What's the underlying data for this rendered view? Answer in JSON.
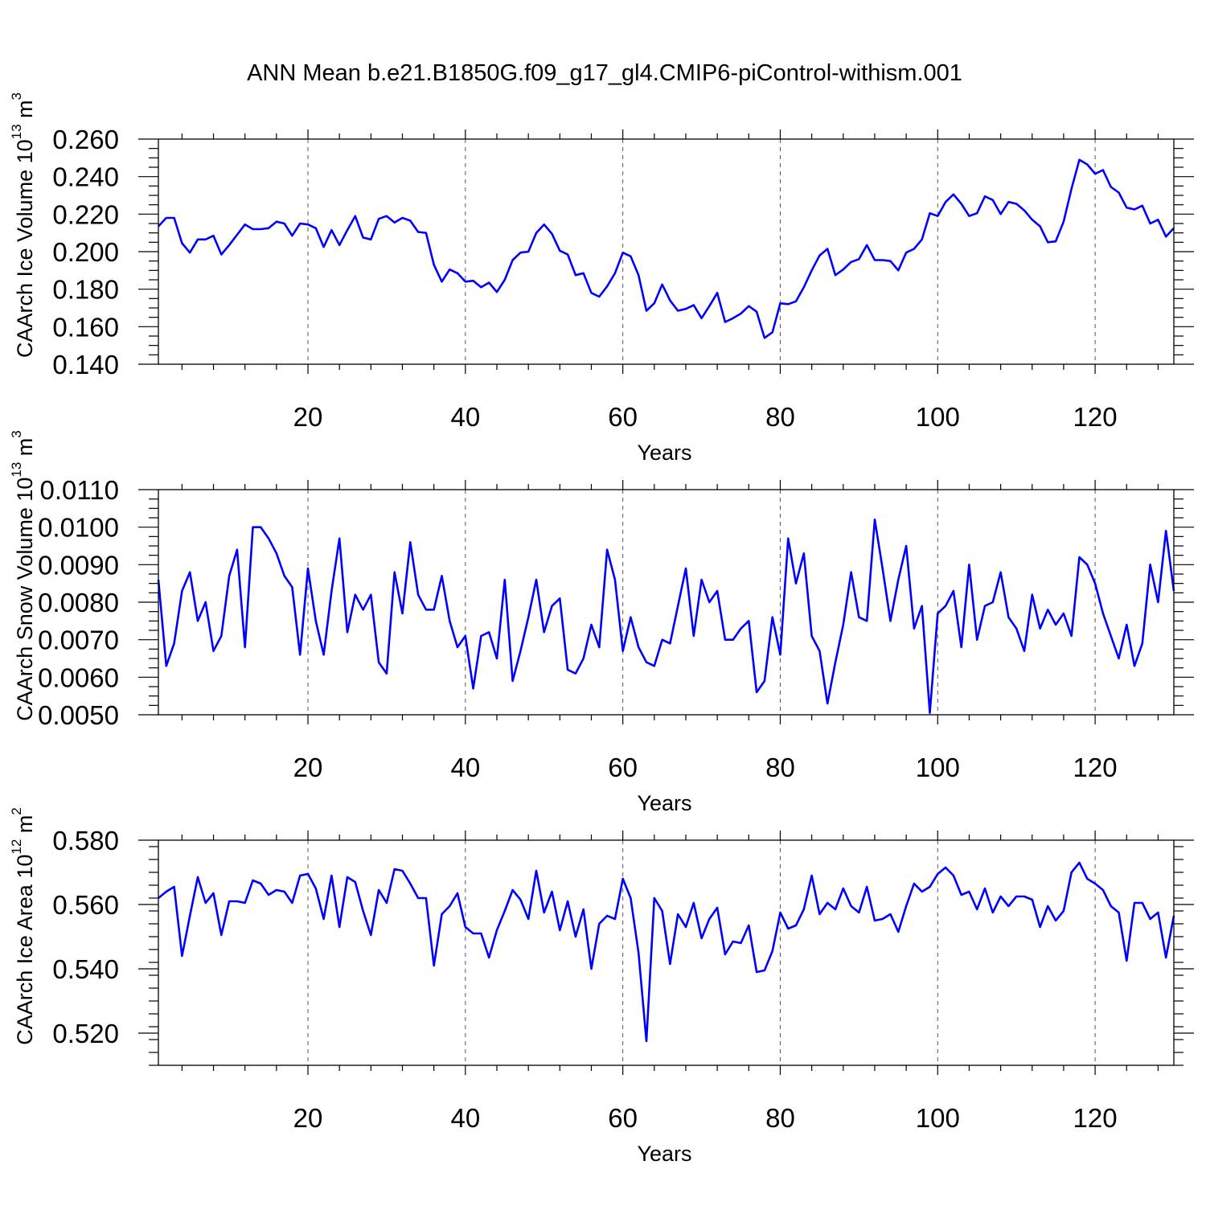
{
  "title": "ANN Mean b.e21.B1850G.f09_g17_gl4.CMIP6-piControl-withism.001",
  "chart_data": [
    {
      "type": "line",
      "xlabel": "Years",
      "ylabel": "CAArch Ice Volume 10",
      "ylabel_exp": "13",
      "ylabel_unit": "m",
      "ylabel_unit_exp": "3",
      "xlim": [
        1,
        130
      ],
      "ylim": [
        0.14,
        0.26
      ],
      "xticks": [
        20,
        40,
        60,
        80,
        100,
        120
      ],
      "yticks": [
        0.14,
        0.16,
        0.18,
        0.2,
        0.22,
        0.24,
        0.26
      ],
      "yticklabels": [
        "0.140",
        "0.160",
        "0.180",
        "0.200",
        "0.220",
        "0.240",
        "0.260"
      ],
      "y_minor_step": 0.005,
      "x_minor_step": 4,
      "grid_x": true,
      "color": "#0000ff",
      "values": [
        0.2135,
        0.218,
        0.218,
        0.2045,
        0.1995,
        0.2065,
        0.2065,
        0.2085,
        0.1985,
        0.2035,
        0.209,
        0.2145,
        0.212,
        0.212,
        0.2125,
        0.216,
        0.215,
        0.2085,
        0.215,
        0.2145,
        0.2125,
        0.2025,
        0.2115,
        0.2035,
        0.2115,
        0.219,
        0.2075,
        0.2065,
        0.2175,
        0.219,
        0.2155,
        0.218,
        0.2165,
        0.2105,
        0.21,
        0.193,
        0.184,
        0.1905,
        0.1885,
        0.184,
        0.1845,
        0.181,
        0.1835,
        0.1785,
        0.185,
        0.1955,
        0.1995,
        0.2,
        0.21,
        0.2145,
        0.2095,
        0.2005,
        0.1985,
        0.1875,
        0.1885,
        0.178,
        0.176,
        0.1815,
        0.1885,
        0.1995,
        0.1975,
        0.1875,
        0.1685,
        0.1725,
        0.1825,
        0.174,
        0.1685,
        0.1695,
        0.1715,
        0.1645,
        0.171,
        0.178,
        0.1625,
        0.1645,
        0.167,
        0.171,
        0.168,
        0.154,
        0.157,
        0.1725,
        0.172,
        0.1735,
        0.181,
        0.19,
        0.198,
        0.2015,
        0.1875,
        0.1905,
        0.1945,
        0.196,
        0.2035,
        0.1955,
        0.1955,
        0.195,
        0.19,
        0.1995,
        0.2015,
        0.2065,
        0.2205,
        0.219,
        0.2265,
        0.2305,
        0.2255,
        0.219,
        0.2205,
        0.2295,
        0.2275,
        0.22,
        0.2265,
        0.2255,
        0.222,
        0.217,
        0.2135,
        0.205,
        0.2055,
        0.216,
        0.2335,
        0.249,
        0.2465,
        0.2415,
        0.2435,
        0.2345,
        0.2315,
        0.2235,
        0.2225,
        0.2245,
        0.215,
        0.217,
        0.208,
        0.2125
      ]
    },
    {
      "type": "line",
      "xlabel": "Years",
      "ylabel": "CAArch Snow Volume 10",
      "ylabel_exp": "13",
      "ylabel_unit": "m",
      "ylabel_unit_exp": "3",
      "xlim": [
        1,
        130
      ],
      "ylim": [
        0.005,
        0.011
      ],
      "xticks": [
        20,
        40,
        60,
        80,
        100,
        120
      ],
      "yticks": [
        0.005,
        0.006,
        0.007,
        0.008,
        0.009,
        0.01,
        0.011
      ],
      "yticklabels": [
        "0.0050",
        "0.0060",
        "0.0070",
        "0.0080",
        "0.0090",
        "0.0100",
        "0.0110"
      ],
      "y_minor_step": 0.00025,
      "x_minor_step": 4,
      "grid_x": true,
      "color": "#0000ff",
      "values": [
        0.0086,
        0.0063,
        0.0069,
        0.0083,
        0.0088,
        0.0075,
        0.008,
        0.0067,
        0.0071,
        0.0087,
        0.0094,
        0.0068,
        0.01,
        0.01,
        0.0097,
        0.0093,
        0.0087,
        0.0084,
        0.0066,
        0.0089,
        0.0075,
        0.0066,
        0.0083,
        0.0097,
        0.0072,
        0.0082,
        0.0078,
        0.0082,
        0.0064,
        0.0061,
        0.0088,
        0.0077,
        0.0096,
        0.0082,
        0.0078,
        0.0078,
        0.0087,
        0.0075,
        0.0068,
        0.0071,
        0.0057,
        0.0071,
        0.0072,
        0.0065,
        0.0086,
        0.0059,
        0.0067,
        0.0076,
        0.0086,
        0.0072,
        0.0079,
        0.0081,
        0.0062,
        0.0061,
        0.0065,
        0.0074,
        0.0068,
        0.0094,
        0.0086,
        0.0067,
        0.0076,
        0.0068,
        0.0064,
        0.0063,
        0.007,
        0.0069,
        0.0079,
        0.0089,
        0.0071,
        0.0086,
        0.008,
        0.0083,
        0.007,
        0.007,
        0.0073,
        0.0075,
        0.0056,
        0.0059,
        0.0076,
        0.0066,
        0.0097,
        0.0085,
        0.0093,
        0.0071,
        0.0067,
        0.0053,
        0.0064,
        0.0074,
        0.0088,
        0.0076,
        0.0075,
        0.0102,
        0.0089,
        0.0075,
        0.0086,
        0.0095,
        0.0073,
        0.0079,
        0.00505,
        0.0077,
        0.0079,
        0.0083,
        0.0068,
        0.009,
        0.007,
        0.0079,
        0.008,
        0.0088,
        0.0076,
        0.0073,
        0.0067,
        0.0082,
        0.0073,
        0.0078,
        0.0074,
        0.0077,
        0.0071,
        0.0092,
        0.009,
        0.0085,
        0.0077,
        0.0071,
        0.0065,
        0.0074,
        0.0063,
        0.0069,
        0.009,
        0.008,
        0.0099,
        0.0083
      ]
    },
    {
      "type": "line",
      "xlabel": "Years",
      "ylabel": "CAArch Ice Area 10",
      "ylabel_exp": "12",
      "ylabel_unit": "m",
      "ylabel_unit_exp": "2",
      "xlim": [
        1,
        130
      ],
      "ylim": [
        0.51,
        0.58
      ],
      "xticks": [
        20,
        40,
        60,
        80,
        100,
        120
      ],
      "yticks": [
        0.52,
        0.54,
        0.56,
        0.58
      ],
      "yticklabels": [
        "0.520",
        "0.540",
        "0.560",
        "0.580"
      ],
      "y_minor_step": 0.004,
      "x_minor_step": 4,
      "grid_x": true,
      "color": "#0000ff",
      "values": [
        0.562,
        0.564,
        0.5655,
        0.544,
        0.5565,
        0.5685,
        0.5605,
        0.5635,
        0.5505,
        0.561,
        0.561,
        0.5605,
        0.5675,
        0.5665,
        0.563,
        0.5645,
        0.564,
        0.5605,
        0.569,
        0.5695,
        0.565,
        0.5555,
        0.569,
        0.553,
        0.5685,
        0.567,
        0.558,
        0.5505,
        0.5645,
        0.5605,
        0.571,
        0.5705,
        0.5665,
        0.562,
        0.562,
        0.541,
        0.557,
        0.5595,
        0.5635,
        0.553,
        0.551,
        0.551,
        0.5435,
        0.552,
        0.558,
        0.5645,
        0.5615,
        0.5555,
        0.5705,
        0.5575,
        0.564,
        0.552,
        0.561,
        0.55,
        0.5585,
        0.54,
        0.554,
        0.5565,
        0.5555,
        0.568,
        0.562,
        0.545,
        0.5175,
        0.562,
        0.558,
        0.5415,
        0.557,
        0.553,
        0.5605,
        0.5495,
        0.5555,
        0.559,
        0.5445,
        0.5485,
        0.548,
        0.5535,
        0.539,
        0.5395,
        0.5455,
        0.5575,
        0.5525,
        0.5535,
        0.5585,
        0.569,
        0.557,
        0.5605,
        0.5585,
        0.565,
        0.5595,
        0.5575,
        0.5655,
        0.555,
        0.5555,
        0.557,
        0.5515,
        0.5595,
        0.5665,
        0.564,
        0.5655,
        0.5695,
        0.5715,
        0.569,
        0.563,
        0.564,
        0.5585,
        0.565,
        0.5575,
        0.5625,
        0.5595,
        0.5625,
        0.5625,
        0.5615,
        0.553,
        0.5595,
        0.555,
        0.558,
        0.57,
        0.573,
        0.568,
        0.5665,
        0.5645,
        0.5595,
        0.5575,
        0.5425,
        0.5605,
        0.5605,
        0.5555,
        0.5575,
        0.5435,
        0.5565
      ]
    }
  ]
}
